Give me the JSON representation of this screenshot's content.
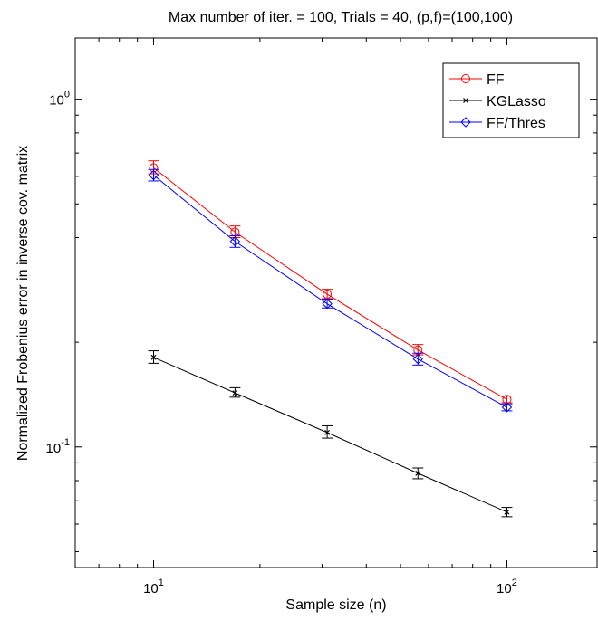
{
  "chart_data": {
    "type": "line",
    "title": "Max number of iter. = 100, Trials = 40, (p,f)=(100,100)",
    "xlabel": "Sample size (n)",
    "ylabel": "Normalized Frobenius error in inverse cov. matrix",
    "xscale": "log",
    "yscale": "log",
    "xlim": [
      6,
      180
    ],
    "ylim": [
      0.045,
      1.5
    ],
    "grid": false,
    "legend_position": "top-right",
    "x_ticks": [
      {
        "value": 10,
        "mantissa": "10",
        "exponent": "1"
      },
      {
        "value": 100,
        "mantissa": "10",
        "exponent": "2"
      }
    ],
    "y_ticks": [
      {
        "value": 0.1,
        "mantissa": "10",
        "exponent": "-1"
      },
      {
        "value": 1,
        "mantissa": "10",
        "exponent": "0"
      }
    ],
    "x": [
      10,
      17,
      31,
      56,
      100
    ],
    "series": [
      {
        "name": "FF",
        "color": "#ff0000",
        "marker": "circle",
        "values": [
          0.635,
          0.415,
          0.275,
          0.19,
          0.137
        ],
        "err_low": [
          0.61,
          0.4,
          0.267,
          0.184,
          0.134
        ],
        "err_high": [
          0.665,
          0.432,
          0.284,
          0.197,
          0.14
        ]
      },
      {
        "name": "KGLasso",
        "color": "#000000",
        "marker": "x",
        "values": [
          0.181,
          0.143,
          0.11,
          0.084,
          0.065
        ],
        "err_low": [
          0.174,
          0.139,
          0.106,
          0.081,
          0.063
        ],
        "err_high": [
          0.189,
          0.148,
          0.115,
          0.087,
          0.067
        ]
      },
      {
        "name": "FF/Thres",
        "color": "#0000ff",
        "marker": "diamond",
        "values": [
          0.605,
          0.39,
          0.258,
          0.179,
          0.13
        ],
        "err_low": [
          0.582,
          0.375,
          0.251,
          0.172,
          0.127
        ],
        "err_high": [
          0.628,
          0.405,
          0.266,
          0.186,
          0.133
        ]
      }
    ]
  }
}
